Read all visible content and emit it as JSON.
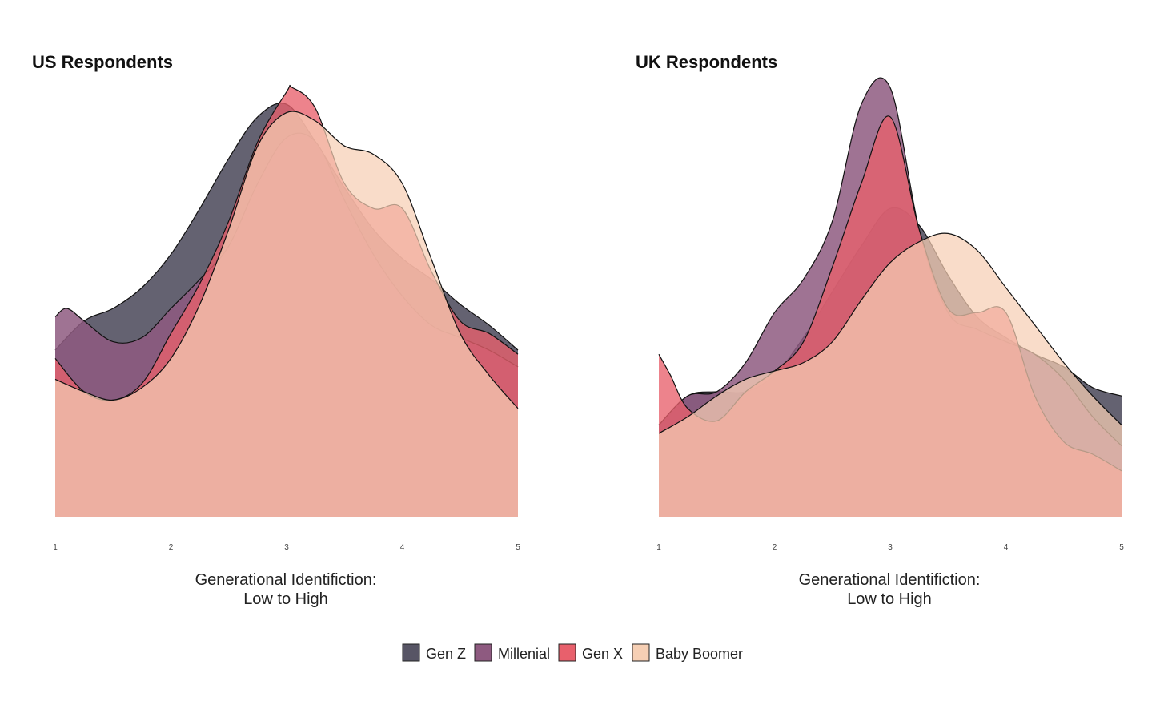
{
  "colors": {
    "gen_z": "#575565",
    "millenial": "#8e5a80",
    "gen_x": "#e8606c",
    "baby_boomer": "#f6cfb4"
  },
  "legend": {
    "items": [
      {
        "key": "gen_z",
        "label": "Gen Z",
        "color": "#575565"
      },
      {
        "key": "millenial",
        "label": "Millenial",
        "color": "#8e5a80"
      },
      {
        "key": "gen_x",
        "label": "Gen X",
        "color": "#e8606c"
      },
      {
        "key": "baby_boomer",
        "label": "Baby Boomer",
        "color": "#f6cfb4"
      }
    ]
  },
  "chart_data": [
    {
      "type": "area",
      "title": "US Respondents",
      "xlabel_line1": "Generational Identifiction:",
      "xlabel_line2": "Low to High",
      "ylabel": "",
      "xlim": [
        1,
        5
      ],
      "x_ticks": [
        "1",
        "2",
        "3",
        "4",
        "5"
      ],
      "y_axis_visible": false,
      "grid": false,
      "legend_placement": "bottom",
      "series": [
        {
          "name": "Gen Z",
          "key": "gen_z",
          "x": [
            1.0,
            1.25,
            1.5,
            1.75,
            2.0,
            2.25,
            2.5,
            2.75,
            3.0,
            3.25,
            3.5,
            3.75,
            4.0,
            4.25,
            4.5,
            4.75,
            5.0
          ],
          "y": [
            0.4,
            0.47,
            0.5,
            0.55,
            0.63,
            0.74,
            0.86,
            0.96,
            0.99,
            0.9,
            0.79,
            0.69,
            0.62,
            0.57,
            0.51,
            0.46,
            0.4
          ]
        },
        {
          "name": "Millenial",
          "key": "millenial",
          "x": [
            1.0,
            1.1,
            1.25,
            1.5,
            1.75,
            2.0,
            2.25,
            2.5,
            2.75,
            3.0,
            3.25,
            3.5,
            3.75,
            4.0,
            4.25,
            4.5,
            4.75,
            5.0
          ],
          "y": [
            0.48,
            0.5,
            0.47,
            0.42,
            0.43,
            0.5,
            0.57,
            0.65,
            0.8,
            0.91,
            0.9,
            0.76,
            0.63,
            0.53,
            0.46,
            0.43,
            0.4,
            0.36
          ]
        },
        {
          "name": "Gen X",
          "key": "gen_x",
          "x": [
            1.0,
            1.25,
            1.5,
            1.75,
            2.0,
            2.25,
            2.5,
            2.75,
            3.0,
            3.05,
            3.25,
            3.5,
            3.75,
            4.0,
            4.25,
            4.5,
            4.75,
            5.0
          ],
          "y": [
            0.38,
            0.3,
            0.28,
            0.32,
            0.44,
            0.56,
            0.71,
            0.9,
            1.02,
            1.03,
            0.98,
            0.8,
            0.74,
            0.74,
            0.59,
            0.47,
            0.44,
            0.39
          ]
        },
        {
          "name": "Baby Boomer",
          "key": "baby_boomer",
          "x": [
            1.0,
            1.25,
            1.5,
            1.75,
            2.0,
            2.25,
            2.5,
            2.75,
            3.0,
            3.25,
            3.5,
            3.75,
            4.0,
            4.25,
            4.5,
            4.75,
            5.0
          ],
          "y": [
            0.33,
            0.3,
            0.28,
            0.31,
            0.38,
            0.51,
            0.69,
            0.89,
            0.97,
            0.95,
            0.89,
            0.87,
            0.8,
            0.62,
            0.44,
            0.34,
            0.26
          ]
        }
      ]
    },
    {
      "type": "area",
      "title": "UK Respondents",
      "xlabel_line1": "Generational Identifiction:",
      "xlabel_line2": "Low to High",
      "ylabel": "",
      "xlim": [
        1,
        5
      ],
      "x_ticks": [
        "1",
        "2",
        "3",
        "4",
        "5"
      ],
      "y_axis_visible": false,
      "grid": false,
      "legend_placement": "bottom",
      "series": [
        {
          "name": "Gen Z",
          "key": "gen_z",
          "x": [
            1.0,
            1.25,
            1.5,
            1.75,
            2.0,
            2.25,
            2.5,
            2.75,
            3.0,
            3.25,
            3.5,
            3.75,
            4.0,
            4.25,
            4.5,
            4.75,
            5.0
          ],
          "y": [
            0.22,
            0.29,
            0.3,
            0.3,
            0.34,
            0.43,
            0.54,
            0.65,
            0.74,
            0.7,
            0.58,
            0.48,
            0.43,
            0.39,
            0.36,
            0.31,
            0.29
          ]
        },
        {
          "name": "Millenial",
          "key": "millenial",
          "x": [
            1.0,
            1.25,
            1.5,
            1.75,
            2.0,
            2.25,
            2.5,
            2.75,
            3.0,
            3.25,
            3.5,
            3.75,
            4.0,
            4.25,
            4.5,
            4.75,
            5.0
          ],
          "y": [
            0.22,
            0.29,
            0.3,
            0.37,
            0.49,
            0.57,
            0.71,
            0.99,
            1.03,
            0.69,
            0.49,
            0.45,
            0.42,
            0.39,
            0.33,
            0.24,
            0.17
          ]
        },
        {
          "name": "Gen X",
          "key": "gen_x",
          "x": [
            1.0,
            1.1,
            1.25,
            1.5,
            1.75,
            2.0,
            2.25,
            2.5,
            2.75,
            3.0,
            3.25,
            3.5,
            3.75,
            4.0,
            4.25,
            4.5,
            4.75,
            5.0
          ],
          "y": [
            0.39,
            0.34,
            0.26,
            0.23,
            0.3,
            0.35,
            0.42,
            0.6,
            0.8,
            0.96,
            0.69,
            0.5,
            0.49,
            0.49,
            0.29,
            0.18,
            0.15,
            0.11
          ]
        },
        {
          "name": "Baby Boomer",
          "key": "baby_boomer",
          "x": [
            1.0,
            1.25,
            1.5,
            1.75,
            2.0,
            2.25,
            2.5,
            2.75,
            3.0,
            3.25,
            3.5,
            3.75,
            4.0,
            4.25,
            4.5,
            4.75,
            5.0
          ],
          "y": [
            0.2,
            0.24,
            0.29,
            0.33,
            0.35,
            0.37,
            0.42,
            0.52,
            0.61,
            0.66,
            0.68,
            0.64,
            0.55,
            0.46,
            0.37,
            0.29,
            0.22
          ]
        }
      ]
    }
  ]
}
